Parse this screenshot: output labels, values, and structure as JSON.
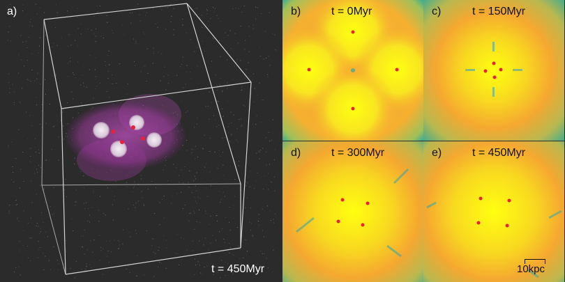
{
  "panel_a": {
    "label": "a)",
    "time": "t = 450Myr"
  },
  "panels": [
    {
      "label": "b)",
      "time": "t = 0Myr"
    },
    {
      "label": "c)",
      "time": "t = 150Myr"
    },
    {
      "label": "d)",
      "time": "t = 300Myr"
    },
    {
      "label": "e)",
      "time": "t = 450Myr"
    }
  ],
  "scalebar": {
    "label": "10kpc"
  },
  "colors": {
    "background": "#2b2b2b",
    "box_edge": "#cfcfcf",
    "halo": "#b040b0",
    "galaxy": "#e8dde8",
    "marker": "#e8203a",
    "map_high": "#ffff10",
    "map_mid": "#f5a830",
    "map_low": "#20a8a0"
  }
}
